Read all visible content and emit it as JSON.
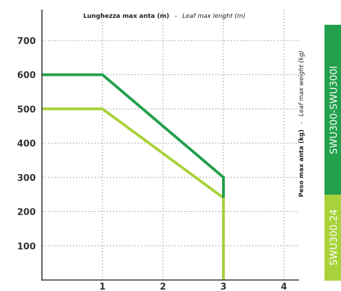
{
  "chart_data": {
    "type": "line",
    "x_title": {
      "main": "Lunghezza max anta (m)",
      "sep": "-",
      "alt": "Leaf max lenght (m)"
    },
    "y_title": {
      "main": "Peso max anta (kg)",
      "sep": "-",
      "alt": "Leaf max weight (kg)"
    },
    "x_ticks": [
      "1",
      "2",
      "3",
      "4"
    ],
    "y_ticks": [
      "100",
      "200",
      "300",
      "400",
      "500",
      "600",
      "700"
    ],
    "xlim": [
      0,
      4.25
    ],
    "ylim": [
      0,
      750
    ],
    "grid": true,
    "series": [
      {
        "name": "SWU300-SWU300I",
        "color": "#22a04b",
        "x": [
          0,
          1,
          3,
          3
        ],
        "y": [
          600,
          600,
          300,
          240
        ]
      },
      {
        "name": "SWU300.24",
        "color": "#a8d23a",
        "x": [
          0,
          1,
          3,
          3
        ],
        "y": [
          500,
          500,
          240,
          0
        ]
      }
    ]
  },
  "tabs": [
    {
      "label": "SWU300-SWU300I",
      "color": "#22a04b"
    },
    {
      "label": "SWU300.24",
      "color": "#a8d23a"
    }
  ]
}
